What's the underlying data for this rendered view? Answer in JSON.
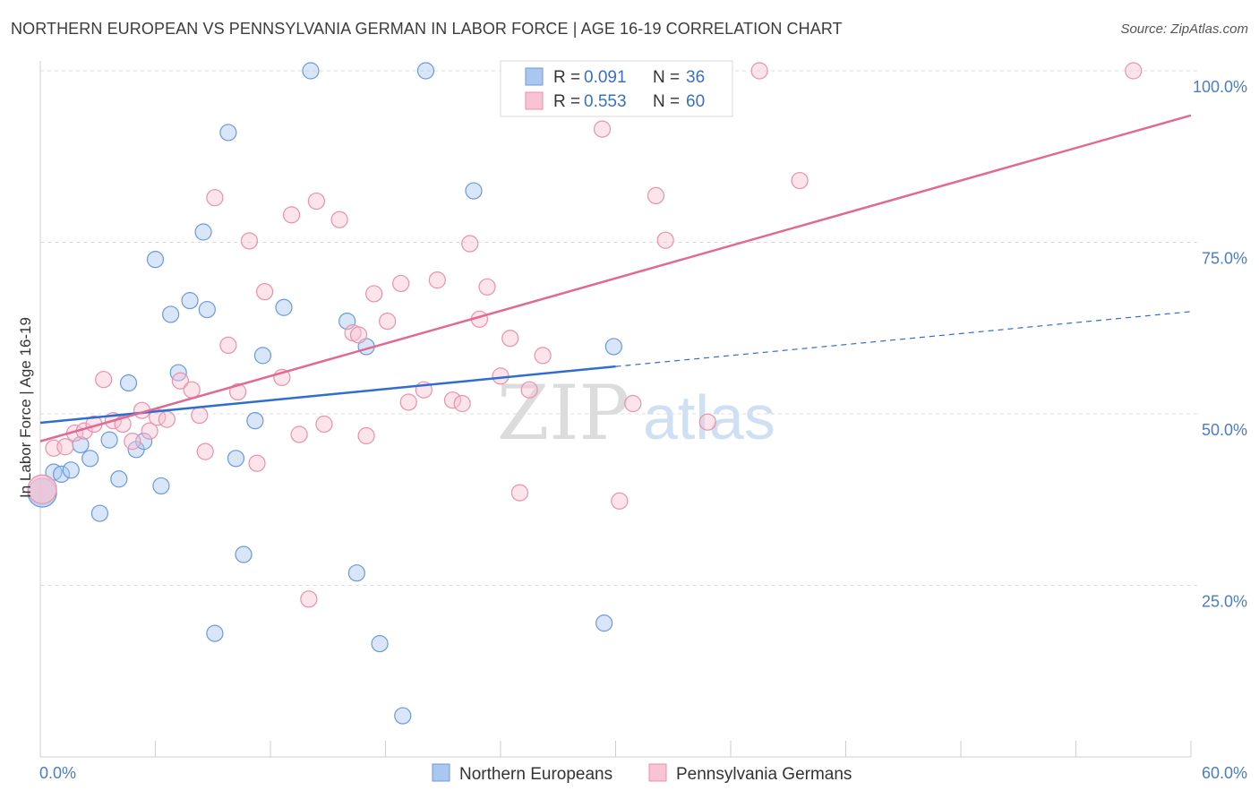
{
  "title": "NORTHERN EUROPEAN VS PENNSYLVANIA GERMAN IN LABOR FORCE | AGE 16-19 CORRELATION CHART",
  "source": "Source: ZipAtlas.com",
  "watermark": {
    "zip": "ZIP",
    "atlas": "atlas"
  },
  "chart_data": {
    "type": "scatter",
    "title": "NORTHERN EUROPEAN VS PENNSYLVANIA GERMAN IN LABOR FORCE | AGE 16-19 CORRELATION CHART",
    "xlabel": "",
    "ylabel": "In Labor Force | Age 16-19",
    "xlim": [
      0,
      60
    ],
    "ylim": [
      0,
      100
    ],
    "x_tick_labels": [
      "0.0%",
      "60.0%"
    ],
    "y_ticks": [
      25,
      50,
      75,
      100
    ],
    "y_tick_labels": [
      "25.0%",
      "50.0%",
      "75.0%",
      "100.0%"
    ],
    "grid": true,
    "legend_placement": "top-center",
    "series": [
      {
        "name": "Northern Europeans",
        "color": "#a9c7ef",
        "stroke": "#6b9ad8",
        "line_color": "#2f6fcb",
        "R": "0.091",
        "N": "36",
        "trend": {
          "x0": 0,
          "y0": 48.7,
          "x1": 30,
          "y1": 56.9,
          "dash_x1": 60,
          "dash_y1": 64.9
        },
        "points": [
          [
            0.1,
            38.5
          ],
          [
            0.7,
            41.5
          ],
          [
            1.1,
            41.2
          ],
          [
            1.6,
            41.8
          ],
          [
            2.1,
            45.5
          ],
          [
            2.6,
            43.5
          ],
          [
            3.1,
            35.5
          ],
          [
            3.6,
            46.2
          ],
          [
            4.1,
            40.5
          ],
          [
            4.6,
            54.5
          ],
          [
            5.0,
            44.8
          ],
          [
            5.4,
            46.0
          ],
          [
            6.0,
            72.5
          ],
          [
            6.3,
            39.5
          ],
          [
            6.8,
            64.5
          ],
          [
            7.2,
            56.0
          ],
          [
            7.8,
            66.5
          ],
          [
            8.5,
            76.5
          ],
          [
            8.7,
            65.2
          ],
          [
            9.1,
            18.0
          ],
          [
            9.8,
            91.0
          ],
          [
            10.2,
            43.5
          ],
          [
            10.6,
            29.5
          ],
          [
            11.2,
            49.0
          ],
          [
            11.6,
            58.5
          ],
          [
            12.7,
            65.5
          ],
          [
            14.1,
            100.0
          ],
          [
            16.0,
            63.5
          ],
          [
            16.5,
            26.8
          ],
          [
            17.0,
            59.8
          ],
          [
            17.7,
            16.5
          ],
          [
            18.9,
            6.0
          ],
          [
            20.1,
            100.0
          ],
          [
            22.6,
            82.5
          ],
          [
            29.4,
            19.5
          ],
          [
            29.9,
            59.8
          ]
        ]
      },
      {
        "name": "Pennsylvania Germans",
        "color": "#f8c3d3",
        "stroke": "#e991ad",
        "line_color": "#e06a95",
        "R": "0.553",
        "N": "60",
        "trend": {
          "x0": 0,
          "y0": 46.0,
          "x1": 60,
          "y1": 93.5
        },
        "points": [
          [
            0.1,
            39.0
          ],
          [
            0.7,
            45.0
          ],
          [
            1.3,
            45.2
          ],
          [
            1.8,
            47.2
          ],
          [
            2.3,
            47.5
          ],
          [
            2.8,
            48.5
          ],
          [
            3.3,
            55.0
          ],
          [
            3.8,
            49.0
          ],
          [
            4.3,
            48.5
          ],
          [
            4.8,
            46.0
          ],
          [
            5.3,
            50.5
          ],
          [
            5.7,
            47.5
          ],
          [
            6.1,
            49.5
          ],
          [
            6.6,
            49.2
          ],
          [
            7.3,
            54.8
          ],
          [
            7.9,
            53.5
          ],
          [
            8.3,
            49.8
          ],
          [
            8.6,
            44.5
          ],
          [
            9.1,
            81.5
          ],
          [
            9.8,
            60.0
          ],
          [
            10.3,
            53.2
          ],
          [
            10.9,
            75.2
          ],
          [
            11.3,
            42.8
          ],
          [
            11.7,
            67.8
          ],
          [
            12.6,
            55.3
          ],
          [
            13.1,
            79.0
          ],
          [
            13.5,
            47.0
          ],
          [
            14.0,
            23.0
          ],
          [
            14.4,
            81.0
          ],
          [
            14.8,
            48.5
          ],
          [
            15.6,
            78.3
          ],
          [
            16.3,
            61.8
          ],
          [
            16.6,
            61.5
          ],
          [
            17.0,
            46.8
          ],
          [
            17.4,
            67.5
          ],
          [
            18.1,
            63.5
          ],
          [
            18.8,
            69.0
          ],
          [
            19.2,
            51.7
          ],
          [
            20.0,
            53.5
          ],
          [
            20.7,
            69.5
          ],
          [
            21.5,
            52.0
          ],
          [
            22.0,
            51.5
          ],
          [
            22.4,
            74.8
          ],
          [
            22.9,
            63.8
          ],
          [
            23.3,
            68.5
          ],
          [
            24.0,
            55.5
          ],
          [
            24.5,
            61.0
          ],
          [
            25.0,
            38.5
          ],
          [
            25.5,
            53.5
          ],
          [
            26.2,
            58.5
          ],
          [
            27.9,
            100.0
          ],
          [
            29.3,
            91.5
          ],
          [
            30.2,
            37.3
          ],
          [
            30.9,
            51.5
          ],
          [
            32.1,
            81.8
          ],
          [
            32.6,
            75.3
          ],
          [
            34.8,
            48.8
          ],
          [
            37.5,
            100.0
          ],
          [
            39.6,
            84.0
          ],
          [
            57.0,
            100.0
          ]
        ]
      }
    ]
  }
}
